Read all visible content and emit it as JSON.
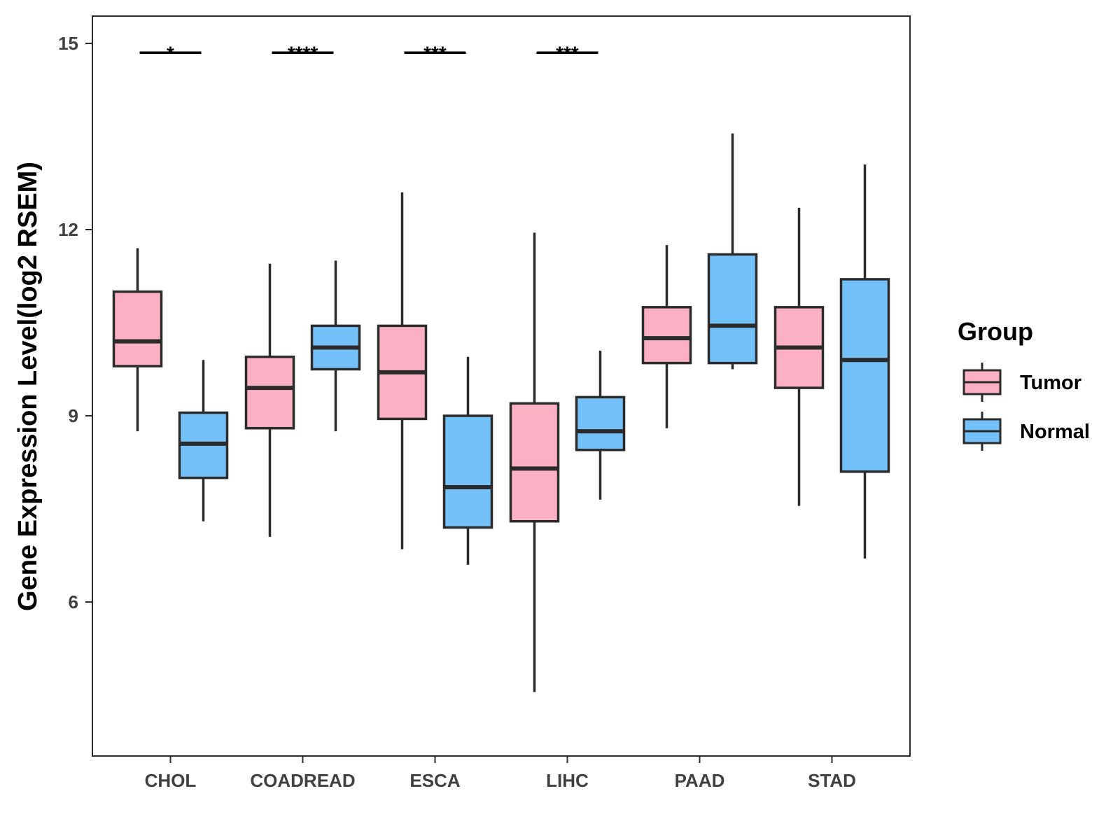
{
  "chart_data": {
    "type": "boxplot",
    "ylabel": "Gene Expression Level(log2 RSEM)",
    "xlabel": "",
    "ylim": [
      3.4,
      15.45
    ],
    "yticks": [
      6,
      9,
      12,
      15
    ],
    "categories": [
      "CHOL",
      "COADREAD",
      "ESCA",
      "LIHC",
      "PAAD",
      "STAD"
    ],
    "legend": {
      "title": "Group",
      "position": "right",
      "entries": [
        {
          "name": "Tumor",
          "color": "#FBB1C3"
        },
        {
          "name": "Normal",
          "color": "#74C0F9"
        }
      ]
    },
    "series": [
      {
        "name": "Tumor",
        "color": "#FBB1C3",
        "boxes": [
          {
            "category": "CHOL",
            "min": 8.75,
            "q1": 9.8,
            "median": 10.2,
            "q3": 11.0,
            "max": 11.7
          },
          {
            "category": "COADREAD",
            "min": 7.05,
            "q1": 8.8,
            "median": 9.45,
            "q3": 9.95,
            "max": 11.45
          },
          {
            "category": "ESCA",
            "min": 6.85,
            "q1": 8.95,
            "median": 9.7,
            "q3": 10.45,
            "max": 12.6
          },
          {
            "category": "LIHC",
            "min": 4.55,
            "q1": 7.3,
            "median": 8.15,
            "q3": 9.2,
            "max": 11.95
          },
          {
            "category": "PAAD",
            "min": 8.8,
            "q1": 9.85,
            "median": 10.25,
            "q3": 10.75,
            "max": 11.75
          },
          {
            "category": "STAD",
            "min": 7.55,
            "q1": 9.45,
            "median": 10.1,
            "q3": 10.75,
            "max": 12.35
          }
        ]
      },
      {
        "name": "Normal",
        "color": "#74C0F9",
        "boxes": [
          {
            "category": "CHOL",
            "min": 7.3,
            "q1": 8.0,
            "median": 8.55,
            "q3": 9.05,
            "max": 9.9
          },
          {
            "category": "COADREAD",
            "min": 8.75,
            "q1": 9.75,
            "median": 10.1,
            "q3": 10.45,
            "max": 11.5
          },
          {
            "category": "ESCA",
            "min": 6.6,
            "q1": 7.2,
            "median": 7.85,
            "q3": 9.0,
            "max": 9.95
          },
          {
            "category": "LIHC",
            "min": 7.65,
            "q1": 8.45,
            "median": 8.75,
            "q3": 9.3,
            "max": 10.05
          },
          {
            "category": "PAAD",
            "min": 9.75,
            "q1": 9.85,
            "median": 10.45,
            "q3": 11.6,
            "max": 13.55
          },
          {
            "category": "STAD",
            "min": 6.7,
            "q1": 8.1,
            "median": 9.9,
            "q3": 11.2,
            "max": 13.05
          }
        ]
      }
    ],
    "annotations": [
      {
        "category": "CHOL",
        "label": "*",
        "y": 14.85
      },
      {
        "category": "COADREAD",
        "label": "****",
        "y": 14.85
      },
      {
        "category": "ESCA",
        "label": "***",
        "y": 14.85
      },
      {
        "category": "LIHC",
        "label": "***",
        "y": 14.85
      }
    ],
    "grid": false
  }
}
